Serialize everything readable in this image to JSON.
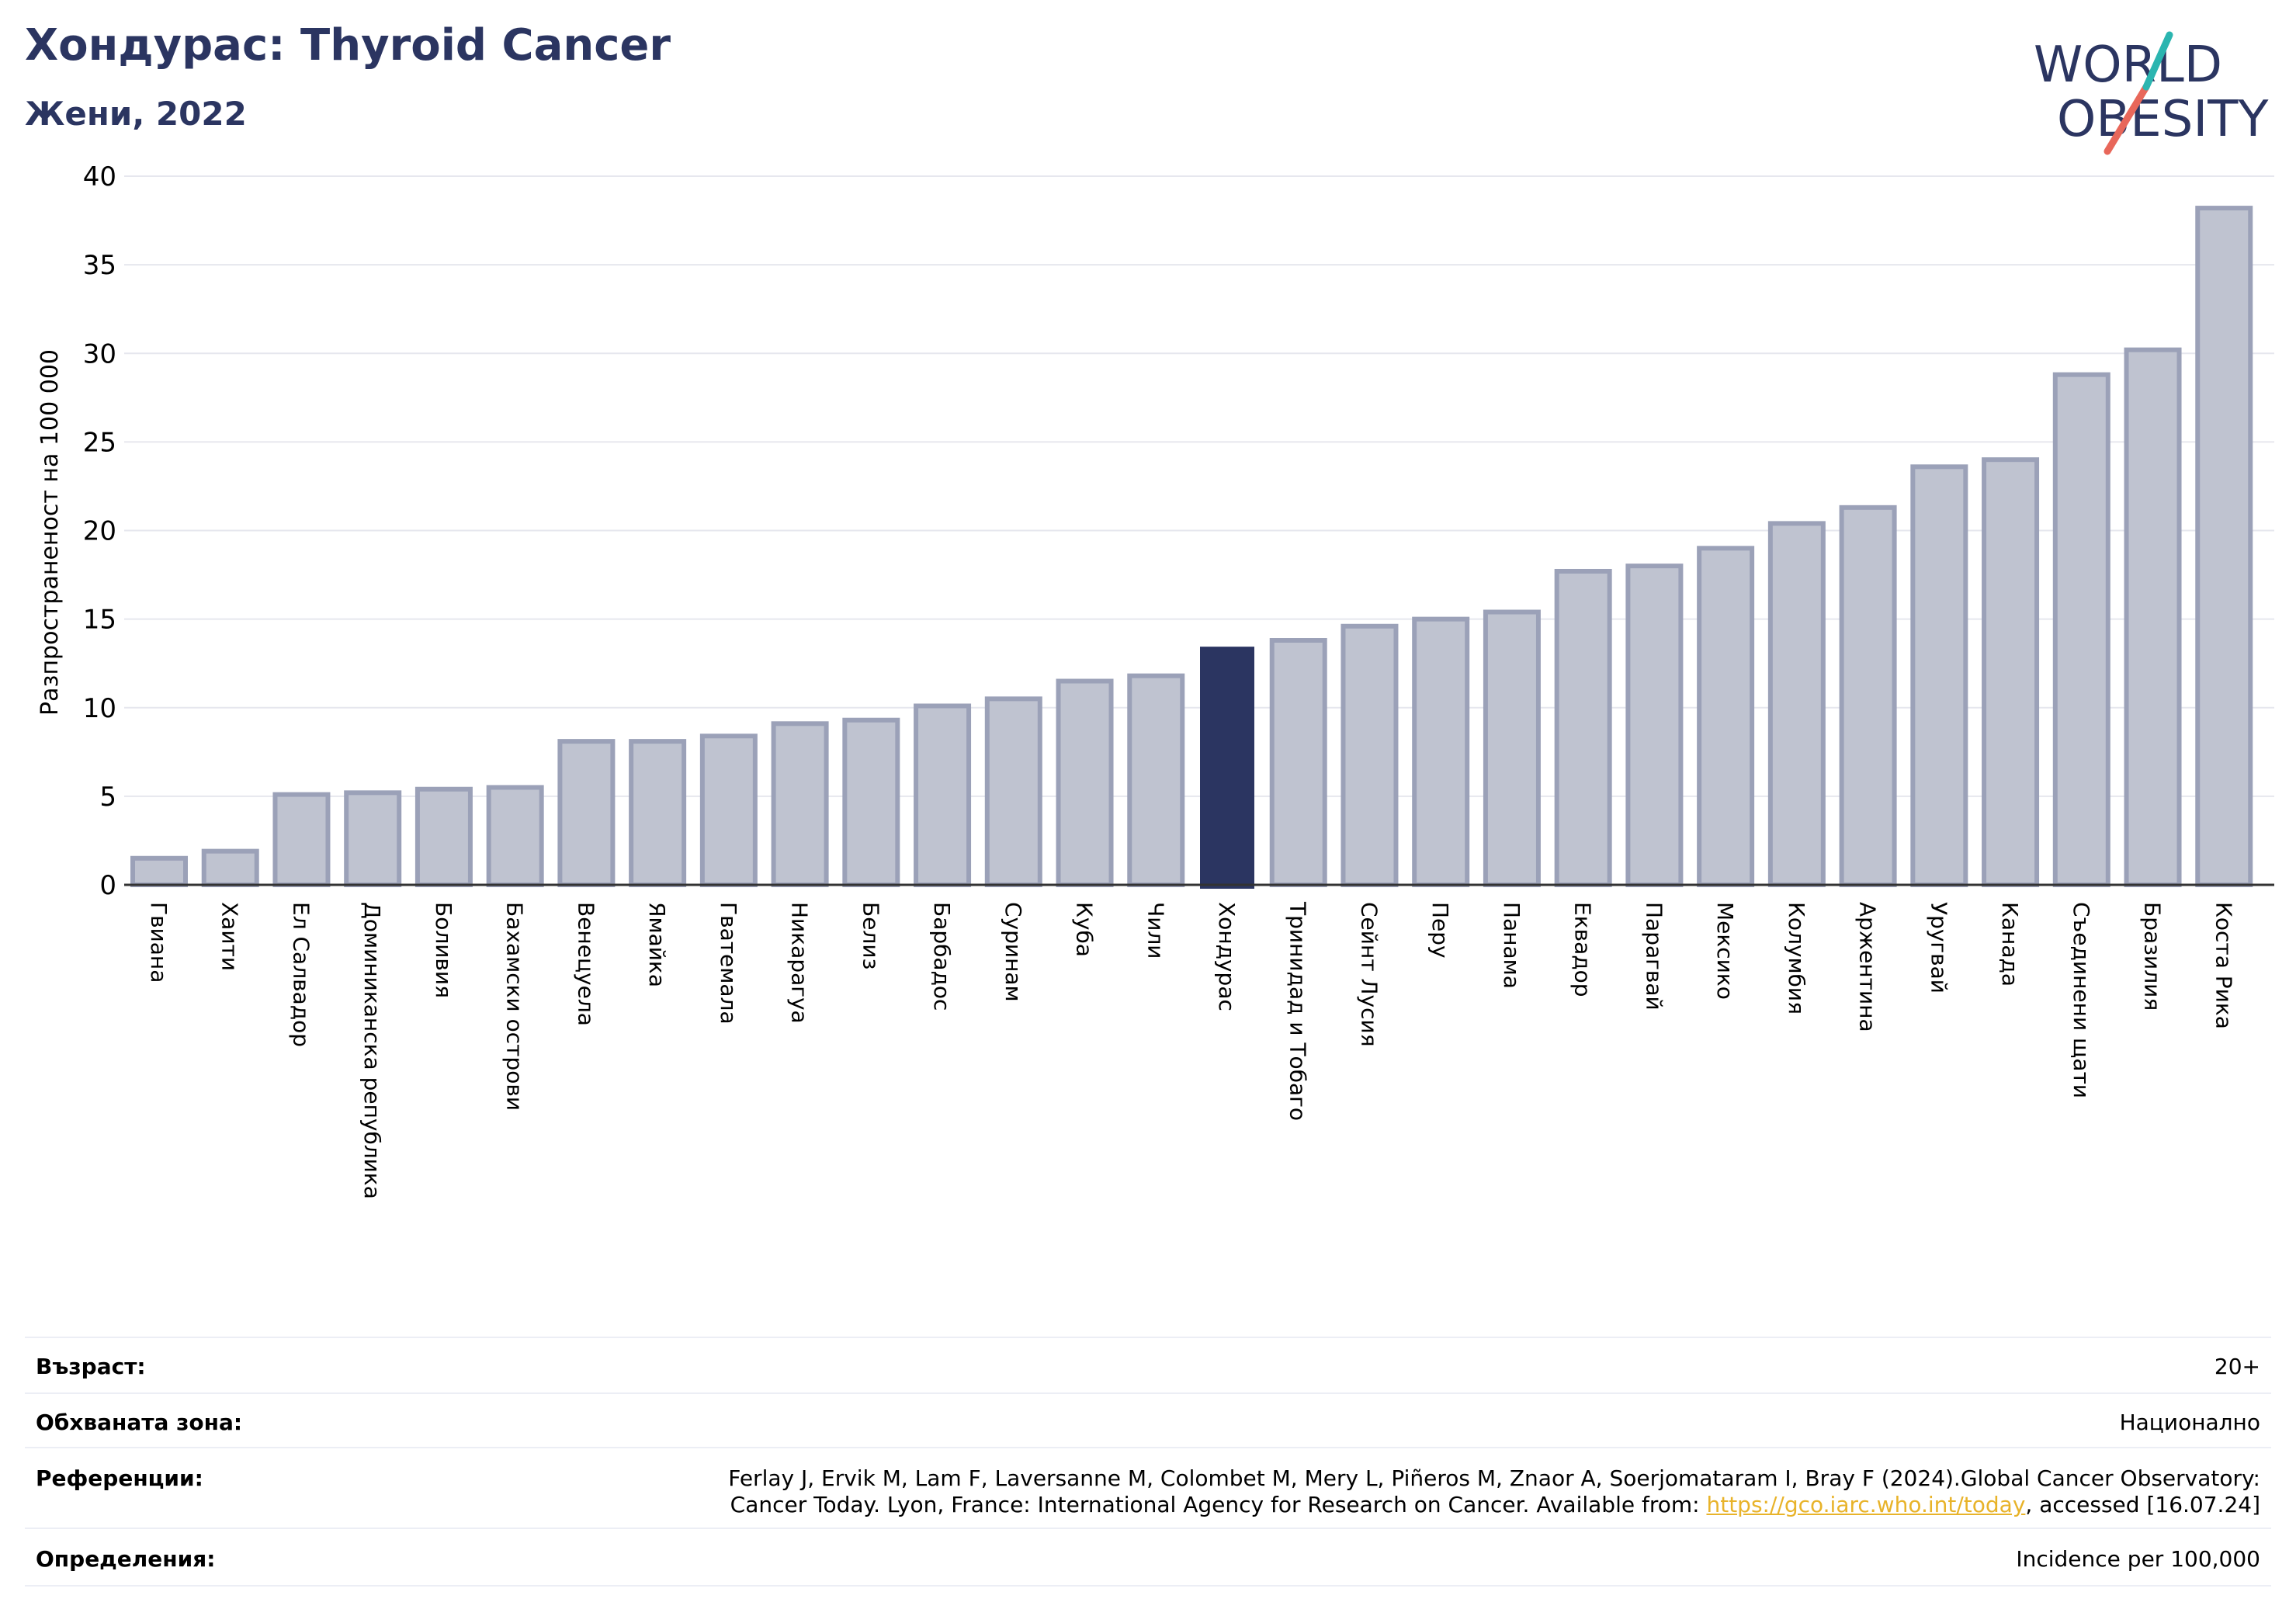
{
  "title": "Хондурас: Thyroid Cancer",
  "subtitle": "Жени, 2022",
  "logo": {
    "line1": "WORLD",
    "line2": "OBESITY"
  },
  "colors": {
    "highlight": "#2b3561",
    "bar_fill": "#bfc3d0",
    "bar_stroke": "#9ba1b8",
    "title": "#2b3561",
    "grid": "#e6e7ee"
  },
  "chart_data": {
    "type": "bar",
    "ylabel": "Разпространеност  на 100 000",
    "ylim": [
      0,
      40
    ],
    "yticks": [
      0,
      5,
      10,
      15,
      20,
      25,
      30,
      35,
      40
    ],
    "grid": true,
    "highlight": "Хондурас",
    "categories": [
      "Гвиана",
      "Хаити",
      "Ел Салвадор",
      "Доминиканска република",
      "Боливия",
      "Бахамски острови",
      "Венецуела",
      "Ямайка",
      "Гватемала",
      "Никарагуа",
      "Белиз",
      "Барбадос",
      "Суринам",
      "Куба",
      "Чили",
      "Хондурас",
      "Тринидад и Тобаго",
      "Сейнт Лусия",
      "Перу",
      "Панама",
      "Еквадор",
      "Парагвай",
      "Мексико",
      "Колумбия",
      "Аржентина",
      "Уругвай",
      "Канада",
      "Съединени щати",
      "Бразилия",
      "Коста Рика"
    ],
    "values": [
      1.5,
      1.9,
      5.1,
      5.2,
      5.4,
      5.5,
      8.1,
      8.1,
      8.4,
      9.1,
      9.3,
      10.1,
      10.5,
      11.5,
      11.8,
      13.4,
      13.8,
      14.6,
      15.0,
      15.4,
      17.7,
      18.0,
      19.0,
      20.4,
      21.3,
      23.6,
      24.0,
      28.8,
      30.2,
      38.2
    ]
  },
  "meta": {
    "age_label": "Възраст:",
    "age_value": "20+",
    "coverage_label": "Обхваната зона:",
    "coverage_value": "Национално",
    "references_label": "Референции:",
    "references_line1": "Ferlay J, Ervik M, Lam F, Laversanne M, Colombet M, Mery L, Piñeros M, Znaor A, Soerjomataram I, Bray F (2024).Global Cancer Observatory:",
    "references_line2_pre": "Cancer Today. Lyon, France: International Agency for Research on Cancer. Available from: ",
    "references_link": "https://gco.iarc.who.int/today",
    "references_line2_post": ", accessed [16.07.24]",
    "definitions_label": "Определения:",
    "definitions_value": "Incidence per 100,000"
  }
}
